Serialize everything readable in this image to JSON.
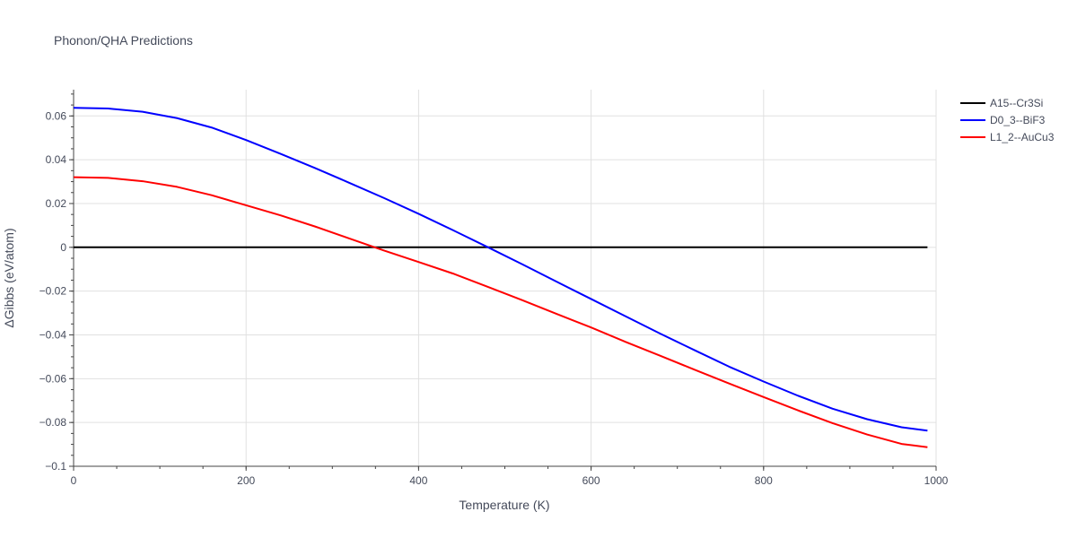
{
  "chart_data": {
    "type": "line",
    "title": "Phonon/QHA Predictions",
    "xlabel": "Temperature (K)",
    "ylabel": "ΔGibbs (eV/atom)",
    "xlim": [
      0,
      1000
    ],
    "ylim": [
      -0.1,
      0.072
    ],
    "x_ticks": [
      0,
      200,
      400,
      600,
      800,
      1000
    ],
    "x_tick_labels": [
      "0",
      "200",
      "400",
      "600",
      "800",
      "1000"
    ],
    "y_ticks": [
      -0.1,
      -0.08,
      -0.06,
      -0.04,
      -0.02,
      0,
      0.02,
      0.04,
      0.06
    ],
    "y_tick_labels": [
      "−0.1",
      "−0.08",
      "−0.06",
      "−0.04",
      "−0.02",
      "0",
      "0.02",
      "0.04",
      "0.06"
    ],
    "grid": true,
    "legend_position": "top-right",
    "series": [
      {
        "name": "A15--Cr3Si",
        "color": "#000000",
        "x": [
          0,
          990
        ],
        "y": [
          0,
          0
        ]
      },
      {
        "name": "D0_3--BiF3",
        "color": "#0000ff",
        "x": [
          0,
          40,
          80,
          120,
          160,
          200,
          240,
          280,
          320,
          360,
          400,
          440,
          480,
          520,
          560,
          600,
          640,
          680,
          720,
          760,
          800,
          840,
          880,
          920,
          960,
          990
        ],
        "y": [
          0.0637,
          0.0634,
          0.0619,
          0.059,
          0.0547,
          0.049,
          0.0427,
          0.0362,
          0.0294,
          0.0225,
          0.0153,
          0.0078,
          0.0001,
          -0.0077,
          -0.0157,
          -0.0236,
          -0.0315,
          -0.0394,
          -0.047,
          -0.0545,
          -0.0613,
          -0.0678,
          -0.0737,
          -0.0785,
          -0.0822,
          -0.0837
        ]
      },
      {
        "name": "L1_2--AuCu3",
        "color": "#ff0000",
        "x": [
          0,
          40,
          80,
          120,
          160,
          200,
          240,
          280,
          320,
          360,
          400,
          440,
          480,
          520,
          560,
          600,
          640,
          680,
          720,
          760,
          800,
          840,
          880,
          920,
          960,
          990
        ],
        "y": [
          0.032,
          0.0317,
          0.0302,
          0.0276,
          0.0238,
          0.0192,
          0.0146,
          0.0095,
          0.004,
          -0.0015,
          -0.0067,
          -0.012,
          -0.018,
          -0.0241,
          -0.0304,
          -0.0366,
          -0.0432,
          -0.0495,
          -0.0559,
          -0.0622,
          -0.0684,
          -0.0745,
          -0.0803,
          -0.0855,
          -0.0898,
          -0.0913
        ]
      }
    ]
  }
}
